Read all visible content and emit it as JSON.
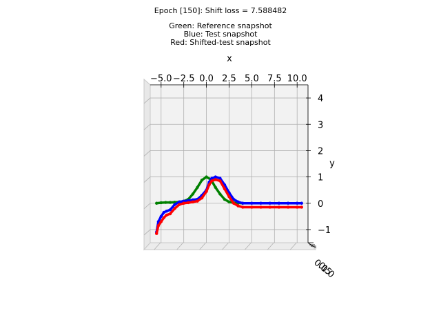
{
  "chart_data": {
    "type": "line",
    "title_lines": [
      "Epoch [150]: Shift loss = 7.588482",
      "",
      "Green: Reference snapshot",
      "Blue: Test snapshot",
      "Red: Shifted-test snapshot"
    ],
    "xlabel": "x",
    "ylabel": "y",
    "x_ticks": [
      "−5.0",
      "−2.5",
      "0.0",
      "2.5",
      "5.0",
      "7.5",
      "10.0"
    ],
    "x_tick_values": [
      -5,
      -2.5,
      0,
      2.5,
      5,
      7.5,
      10
    ],
    "y_ticks": [
      "4",
      "3",
      "2",
      "1",
      "0",
      "−1"
    ],
    "y_tick_values": [
      4,
      3,
      2,
      1,
      0,
      -1
    ],
    "z_ticks": [
      "0.0",
      "0.5",
      "1.0"
    ],
    "xlim": [
      -6.2,
      11.2
    ],
    "ylim": [
      -1.5,
      4.5
    ],
    "grid": true,
    "colors": {
      "reference": "#008000",
      "test": "#0000ff",
      "shifted": "#ff0000"
    },
    "series": [
      {
        "color": "#008000",
        "x": [
          -5.5,
          -5,
          -4.5,
          -4,
          -3.5,
          -3,
          -2.5,
          -2,
          -1.5,
          -1,
          -0.5,
          0,
          0.5,
          1,
          1.5,
          2,
          2.5,
          3,
          3.5,
          4
        ],
        "y": [
          0.0,
          0.02,
          0.03,
          0.03,
          0.04,
          0.05,
          0.08,
          0.15,
          0.35,
          0.6,
          0.88,
          1.0,
          0.9,
          0.6,
          0.35,
          0.15,
          0.05,
          0.02,
          0.01,
          0.0
        ]
      },
      {
        "color": "#0000ff",
        "x": [
          -5.5,
          -5.3,
          -5,
          -4.7,
          -4.4,
          -4,
          -3.5,
          -3,
          -2.5,
          -2,
          -1.5,
          -1,
          -0.5,
          0,
          0.3,
          0.6,
          1,
          1.5,
          2,
          2.5,
          3,
          3.5,
          4,
          5,
          6,
          7,
          8,
          9,
          10,
          10.5
        ],
        "y": [
          -1.1,
          -0.7,
          -0.5,
          -0.35,
          -0.3,
          -0.25,
          -0.05,
          0.05,
          0.08,
          0.1,
          0.13,
          0.15,
          0.3,
          0.5,
          0.8,
          0.95,
          1.0,
          0.95,
          0.7,
          0.4,
          0.15,
          0.05,
          0.0,
          0.0,
          0.0,
          0.0,
          0.0,
          0.0,
          0.0,
          0.0
        ]
      },
      {
        "color": "#ff0000",
        "x": [
          -5.5,
          -5.3,
          -5,
          -4.7,
          -4.4,
          -4,
          -3.5,
          -3,
          -2.5,
          -2,
          -1.5,
          -1,
          -0.5,
          0,
          0.3,
          0.6,
          1,
          1.5,
          2,
          2.5,
          3,
          3.5,
          4,
          5,
          6,
          7,
          8,
          9,
          10,
          10.5
        ],
        "y": [
          -1.15,
          -0.85,
          -0.7,
          -0.55,
          -0.45,
          -0.4,
          -0.2,
          -0.05,
          0.0,
          0.02,
          0.05,
          0.08,
          0.2,
          0.45,
          0.7,
          0.85,
          0.9,
          0.85,
          0.55,
          0.25,
          0.0,
          -0.1,
          -0.15,
          -0.15,
          -0.15,
          -0.15,
          -0.15,
          -0.15,
          -0.15,
          -0.15
        ]
      }
    ]
  }
}
